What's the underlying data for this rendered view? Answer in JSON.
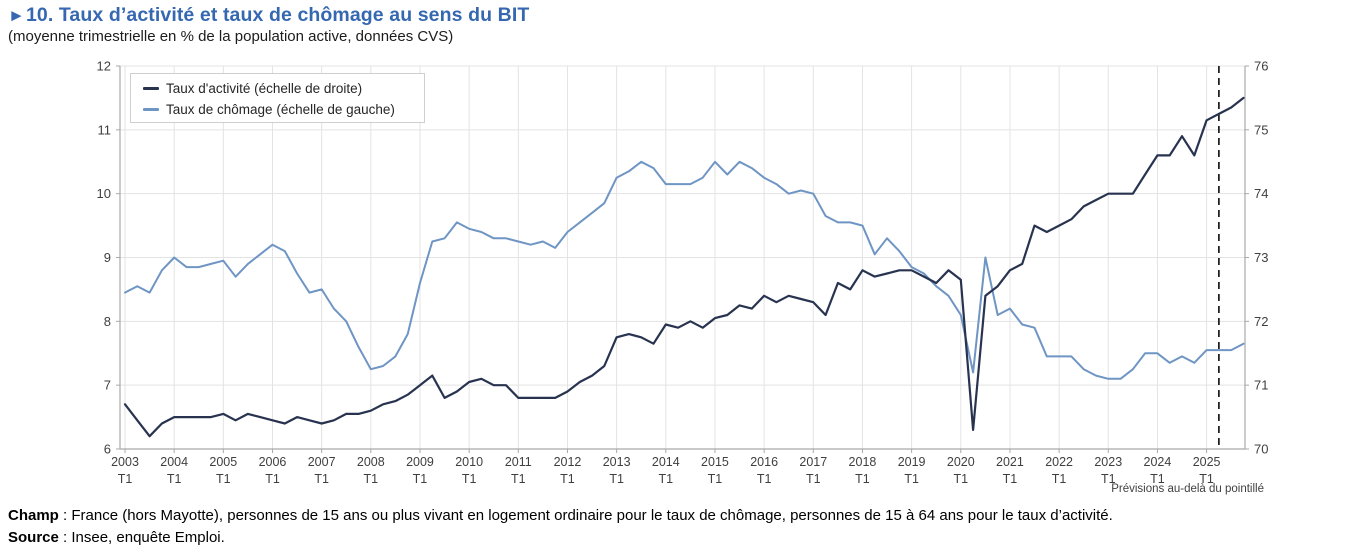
{
  "header": {
    "title_marker": "►",
    "title": "10. Taux d’activité et taux de chômage au sens du BIT",
    "subtitle": "(moyenne trimestrielle en % de la population active, données CVS)"
  },
  "footer": {
    "champ_label": "Champ",
    "champ_text": " : France (hors Mayotte), personnes de 15 ans ou plus vivant en logement ordinaire pour le taux de chômage, personnes de 15 à 64 ans pour le taux d’activité.",
    "source_label": "Source",
    "source_text": " : Insee, enquête Emploi."
  },
  "style": {
    "title_color": "#3568b0",
    "grid_color": "#e3e3e3",
    "axis_color": "#a9a9a9",
    "tick_label_color": "#3f3f3f",
    "dashed_line_color": "#1a1a1a",
    "background": "#ffffff"
  },
  "chart_data": {
    "type": "line",
    "frequency": "quarterly",
    "x_start": "2003-T1",
    "x_end": "2025-T4",
    "grid": true,
    "legend_position": "top-left",
    "forecast_note": "Prévisions au-delà du pointillé",
    "dashed_line_index": 89,
    "forecast_start_index": 90,
    "left_axis": {
      "min": 6,
      "max": 12,
      "ticks": [
        6,
        7,
        8,
        9,
        10,
        11,
        12
      ]
    },
    "right_axis": {
      "min": 70,
      "max": 76,
      "ticks": [
        70,
        71,
        72,
        73,
        74,
        75,
        76
      ]
    },
    "x_ticks": [
      {
        "year": "2003",
        "sub": "T1"
      },
      {
        "year": "2004",
        "sub": "T1"
      },
      {
        "year": "2005",
        "sub": "T1"
      },
      {
        "year": "2006",
        "sub": "T1"
      },
      {
        "year": "2007",
        "sub": "T1"
      },
      {
        "year": "2008",
        "sub": "T1"
      },
      {
        "year": "2009",
        "sub": "T1"
      },
      {
        "year": "2010",
        "sub": "T1"
      },
      {
        "year": "2011",
        "sub": "T1"
      },
      {
        "year": "2012",
        "sub": "T1"
      },
      {
        "year": "2013",
        "sub": "T1"
      },
      {
        "year": "2014",
        "sub": "T1"
      },
      {
        "year": "2015",
        "sub": "T1"
      },
      {
        "year": "2016",
        "sub": "T1"
      },
      {
        "year": "2017",
        "sub": "T1"
      },
      {
        "year": "2018",
        "sub": "T1"
      },
      {
        "year": "2019",
        "sub": "T1"
      },
      {
        "year": "2020",
        "sub": "T1"
      },
      {
        "year": "2021",
        "sub": "T1"
      },
      {
        "year": "2022",
        "sub": "T1"
      },
      {
        "year": "2023",
        "sub": "T1"
      },
      {
        "year": "2024",
        "sub": "T1"
      },
      {
        "year": "2025",
        "sub": "T1"
      }
    ],
    "series": [
      {
        "name": "Taux d'activité (échelle de droite)",
        "axis": "right",
        "color": "#283350",
        "width": 2.2,
        "values": [
          70.7,
          70.45,
          70.2,
          70.4,
          70.5,
          70.5,
          70.5,
          70.5,
          70.55,
          70.45,
          70.55,
          70.5,
          70.45,
          70.4,
          70.5,
          70.45,
          70.4,
          70.45,
          70.55,
          70.55,
          70.6,
          70.7,
          70.75,
          70.85,
          71.0,
          71.15,
          70.8,
          70.9,
          71.05,
          71.1,
          71.0,
          71.0,
          70.8,
          70.8,
          70.8,
          70.8,
          70.9,
          71.05,
          71.15,
          71.3,
          71.75,
          71.8,
          71.75,
          71.65,
          71.95,
          71.9,
          72.0,
          71.9,
          72.05,
          72.1,
          72.25,
          72.2,
          72.4,
          72.3,
          72.4,
          72.35,
          72.3,
          72.1,
          72.6,
          72.5,
          72.8,
          72.7,
          72.75,
          72.8,
          72.8,
          72.7,
          72.6,
          72.8,
          72.65,
          70.3,
          72.4,
          72.55,
          72.8,
          72.9,
          73.5,
          73.4,
          73.5,
          73.6,
          73.8,
          73.9,
          74.0,
          74.0,
          74.0,
          74.3,
          74.6,
          74.6,
          74.9,
          74.6,
          75.15,
          75.25,
          75.35,
          75.5
        ]
      },
      {
        "name": "Taux de chômage (échelle de gauche)",
        "axis": "left",
        "color": "#6f95c4",
        "width": 2.0,
        "values": [
          8.45,
          8.55,
          8.45,
          8.8,
          9.0,
          8.85,
          8.85,
          8.9,
          8.95,
          8.7,
          8.9,
          9.05,
          9.2,
          9.1,
          8.75,
          8.45,
          8.5,
          8.2,
          8.0,
          7.6,
          7.25,
          7.3,
          7.45,
          7.8,
          8.6,
          9.25,
          9.3,
          9.55,
          9.45,
          9.4,
          9.3,
          9.3,
          9.25,
          9.2,
          9.25,
          9.15,
          9.4,
          9.55,
          9.7,
          9.85,
          10.25,
          10.35,
          10.5,
          10.4,
          10.15,
          10.15,
          10.15,
          10.25,
          10.5,
          10.3,
          10.5,
          10.4,
          10.25,
          10.15,
          10.0,
          10.05,
          10.0,
          9.65,
          9.55,
          9.55,
          9.5,
          9.05,
          9.3,
          9.1,
          8.85,
          8.75,
          8.55,
          8.4,
          8.1,
          7.2,
          9.0,
          8.1,
          8.2,
          7.95,
          7.9,
          7.45,
          7.45,
          7.45,
          7.25,
          7.15,
          7.1,
          7.1,
          7.25,
          7.5,
          7.5,
          7.35,
          7.45,
          7.35,
          7.55,
          7.55,
          7.55,
          7.65
        ]
      }
    ]
  }
}
